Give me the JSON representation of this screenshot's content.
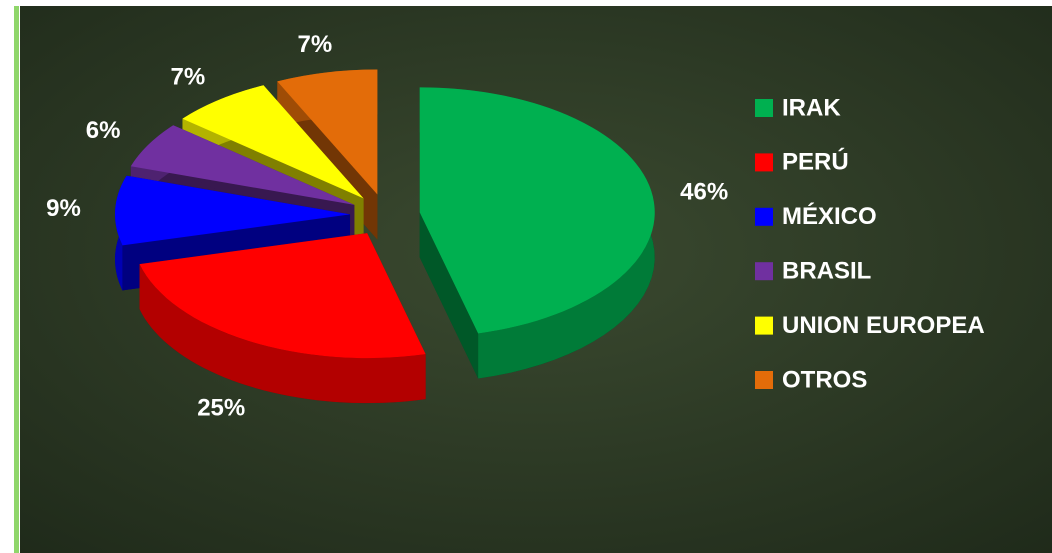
{
  "chart_data": {
    "type": "pie",
    "categories": [
      "IRAK",
      "PERÚ",
      "MÉXICO",
      "BRASIL",
      "UNION EUROPEA",
      "OTROS"
    ],
    "values": [
      46,
      25,
      9,
      6,
      7,
      7
    ],
    "value_labels": [
      "46%",
      "25%",
      "9%",
      "6%",
      "7%",
      "7%"
    ],
    "colors": [
      "#00b050",
      "#ff0000",
      "#0000ff",
      "#7030a0",
      "#ffff00",
      "#e36c09"
    ],
    "legend": "right"
  }
}
